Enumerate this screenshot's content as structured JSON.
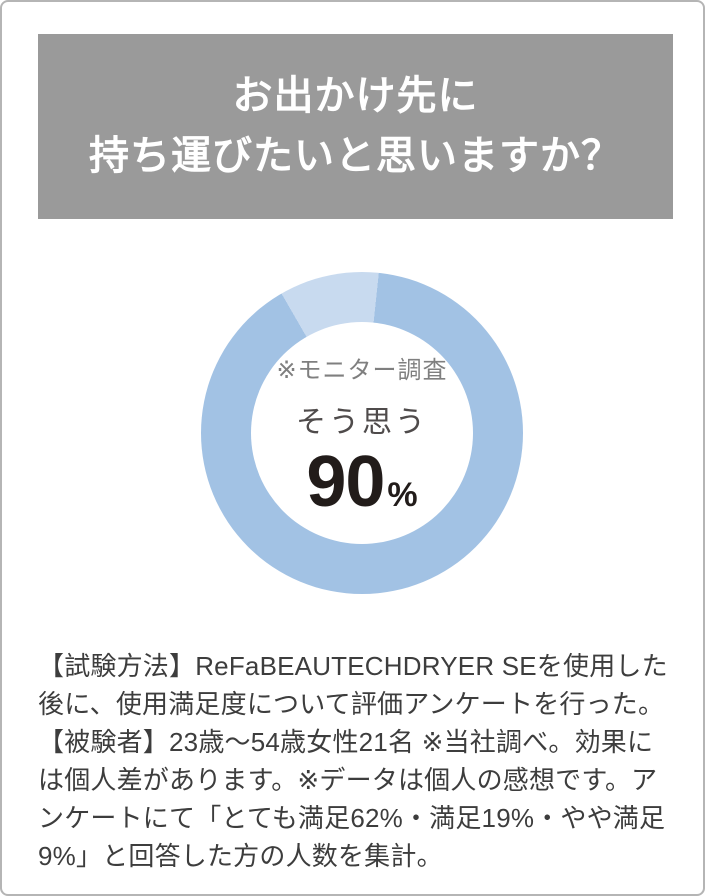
{
  "page": {
    "background": "#ffffff",
    "border_color": "#b5b5b5"
  },
  "header": {
    "bg_color": "#9a9a9a",
    "text_color": "#ffffff",
    "line1": "お出かけ先に",
    "line2": "持ち運びたいと思いますか？"
  },
  "chart_data": {
    "type": "pie",
    "donut": true,
    "title": "お出かけ先に持ち運びたいと思いますか？",
    "start_angle_deg": 6,
    "segments": [
      {
        "label": "そう思う",
        "value": 90,
        "color": "#a2c2e4"
      },
      {
        "label": "",
        "value": 10,
        "color": "#c8daef"
      }
    ],
    "center_note": "※モニター調査",
    "center_label": "そう思う",
    "center_value": "90",
    "center_unit": "%",
    "legend": "none"
  },
  "footnote": {
    "text": "【試験方法】ReFaBEAUTECHDRYER SEを使用した後に、使用満足度について評価アンケートを行った。【被験者】23歳〜54歳女性21名 ※当社調べ。効果には個人差があります。※データは個人の感想です。アンケートにて「とても満足62%・満足19%・やや満足9%」と回答した方の人数を集計。"
  }
}
